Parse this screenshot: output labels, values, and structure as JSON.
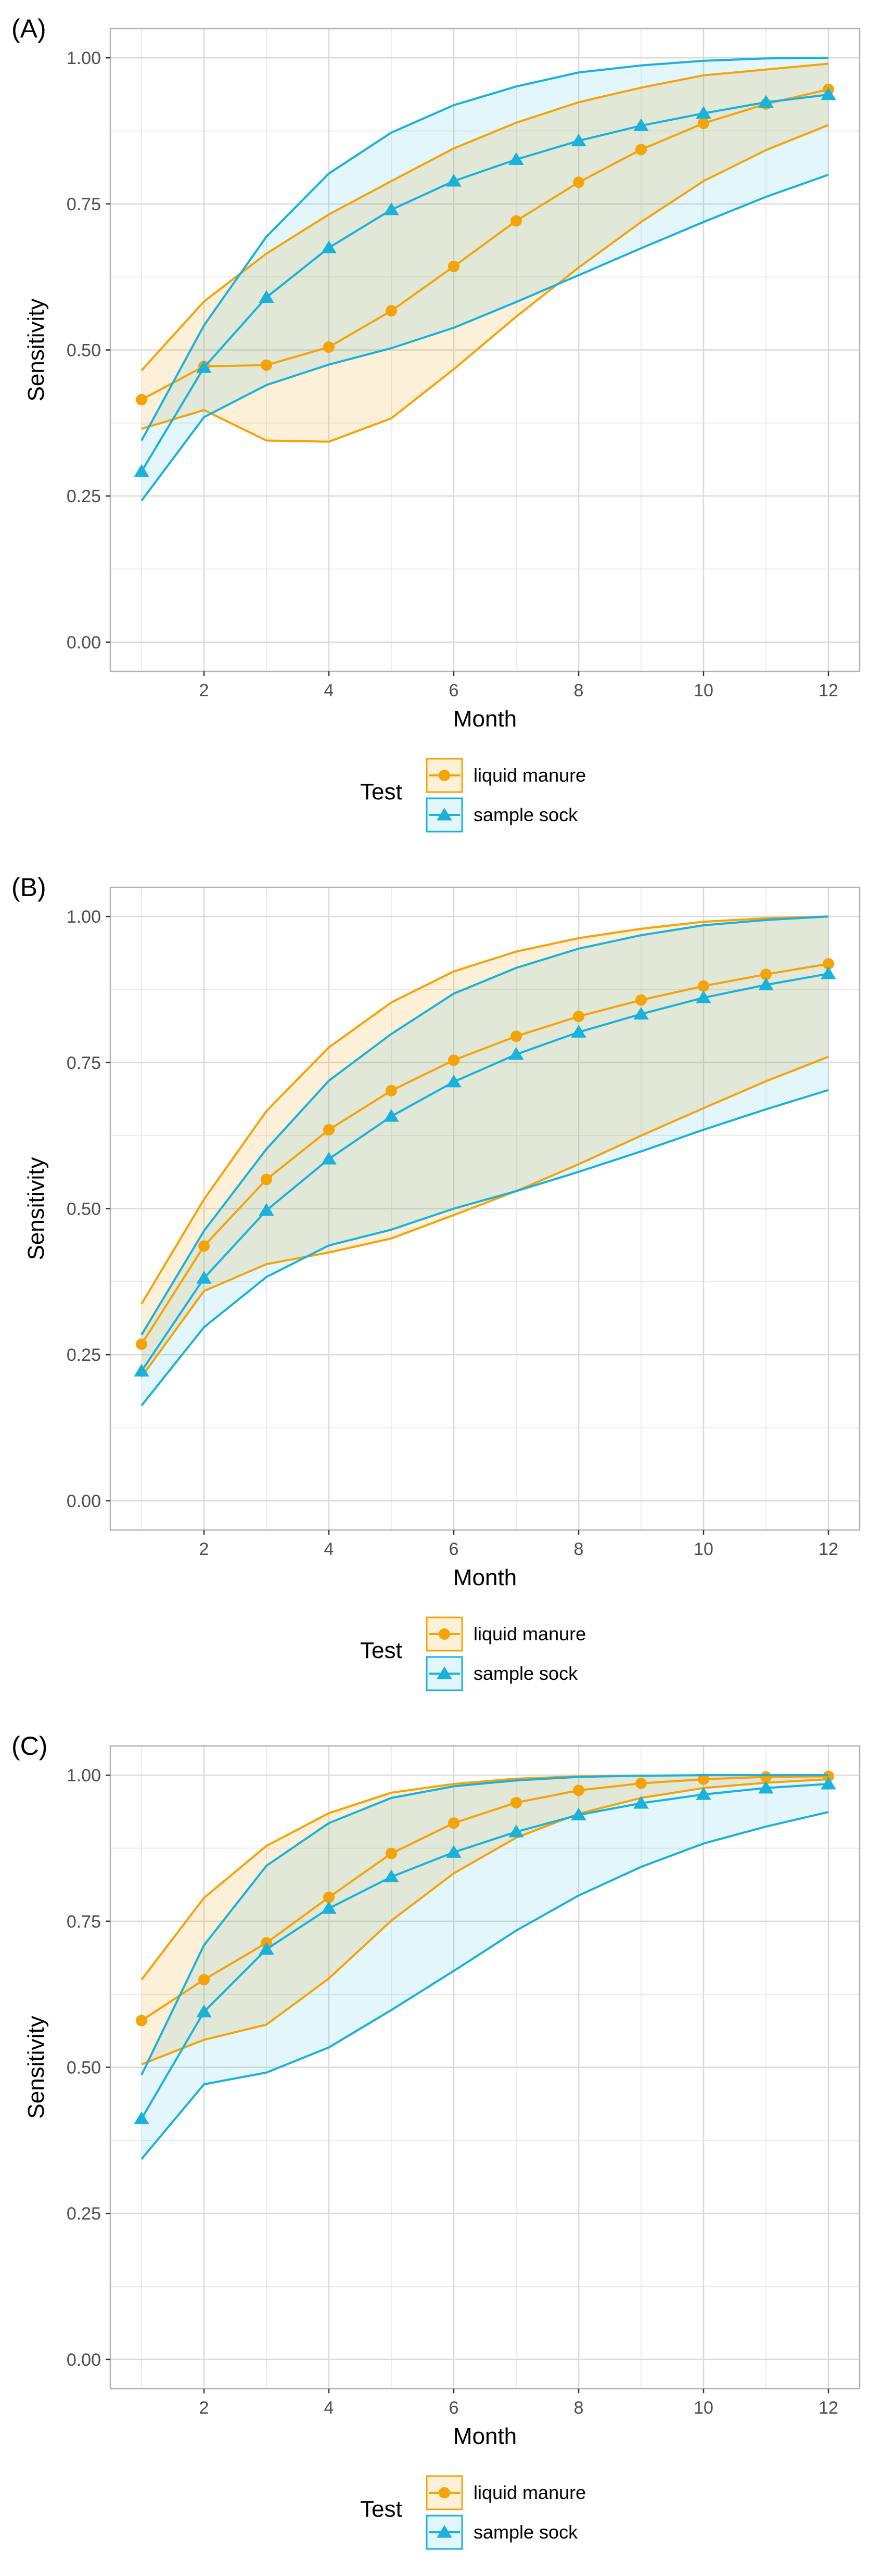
{
  "figure": {
    "colors": {
      "liquid_manure": "#F5A30A",
      "sample_sock": "#1AB1DB",
      "grid": "#E6E6E6",
      "axis_text": "#4D4D4D",
      "panel_border": "#B3B3B3"
    }
  },
  "chart_data": [
    {
      "panel_label": "(A)",
      "type": "line",
      "xlabel": "Month",
      "ylabel": "Sensitivity",
      "xlim": [
        0.5,
        12.5
      ],
      "ylim": [
        -0.05,
        1.05
      ],
      "x_ticks": [
        "2",
        "4",
        "6",
        "8",
        "10",
        "12"
      ],
      "y_ticks": [
        "0.00",
        "0.25",
        "0.50",
        "0.75",
        "1.00"
      ],
      "legend": {
        "title": "Test",
        "position": "bottom"
      },
      "x": [
        1,
        2,
        3,
        4,
        5,
        6,
        7,
        8,
        9,
        10,
        11,
        12
      ],
      "series": [
        {
          "name": "liquid manure",
          "marker": "circle",
          "values": [
            0.415,
            0.472,
            0.474,
            0.505,
            0.567,
            0.643,
            0.721,
            0.787,
            0.843,
            0.888,
            0.921,
            0.946
          ],
          "lower": [
            0.365,
            0.397,
            0.345,
            0.343,
            0.383,
            0.467,
            0.557,
            0.641,
            0.719,
            0.789,
            0.842,
            0.885
          ],
          "upper": [
            0.465,
            0.583,
            0.665,
            0.732,
            0.789,
            0.845,
            0.889,
            0.924,
            0.949,
            0.97,
            0.98,
            0.99
          ]
        },
        {
          "name": "sample sock",
          "marker": "triangle",
          "values": [
            0.292,
            0.47,
            0.59,
            0.675,
            0.74,
            0.789,
            0.826,
            0.858,
            0.884,
            0.905,
            0.924,
            0.937
          ],
          "lower": [
            0.242,
            0.385,
            0.44,
            0.475,
            0.503,
            0.538,
            0.582,
            0.628,
            0.674,
            0.719,
            0.762,
            0.8
          ],
          "upper": [
            0.345,
            0.542,
            0.694,
            0.802,
            0.872,
            0.919,
            0.951,
            0.975,
            0.987,
            0.995,
            0.999,
            1.0
          ]
        }
      ]
    },
    {
      "panel_label": "(B)",
      "type": "line",
      "xlabel": "Month",
      "ylabel": "Sensitivity",
      "xlim": [
        0.5,
        12.5
      ],
      "ylim": [
        -0.05,
        1.05
      ],
      "x_ticks": [
        "2",
        "4",
        "6",
        "8",
        "10",
        "12"
      ],
      "y_ticks": [
        "0.00",
        "0.25",
        "0.50",
        "0.75",
        "1.00"
      ],
      "legend": {
        "title": "Test",
        "position": "bottom"
      },
      "x": [
        1,
        2,
        3,
        4,
        5,
        6,
        7,
        8,
        9,
        10,
        11,
        12
      ],
      "series": [
        {
          "name": "liquid manure",
          "marker": "circle",
          "values": [
            0.268,
            0.436,
            0.55,
            0.635,
            0.702,
            0.754,
            0.795,
            0.829,
            0.857,
            0.881,
            0.901,
            0.919
          ],
          "lower": [
            0.212,
            0.359,
            0.405,
            0.425,
            0.449,
            0.489,
            0.53,
            0.576,
            0.625,
            0.672,
            0.718,
            0.76
          ],
          "upper": [
            0.337,
            0.516,
            0.667,
            0.776,
            0.853,
            0.906,
            0.94,
            0.963,
            0.979,
            0.991,
            0.997,
            1.0
          ]
        },
        {
          "name": "sample sock",
          "marker": "triangle",
          "values": [
            0.222,
            0.381,
            0.497,
            0.585,
            0.658,
            0.717,
            0.764,
            0.802,
            0.833,
            0.861,
            0.883,
            0.902
          ],
          "lower": [
            0.163,
            0.297,
            0.383,
            0.437,
            0.464,
            0.5,
            0.53,
            0.563,
            0.598,
            0.635,
            0.67,
            0.703
          ],
          "upper": [
            0.284,
            0.462,
            0.602,
            0.719,
            0.799,
            0.868,
            0.912,
            0.945,
            0.968,
            0.985,
            0.994,
            1.0
          ]
        }
      ]
    },
    {
      "panel_label": "(C)",
      "type": "line",
      "xlabel": "Month",
      "ylabel": "Sensitivity",
      "xlim": [
        0.5,
        12.5
      ],
      "ylim": [
        -0.05,
        1.05
      ],
      "x_ticks": [
        "2",
        "4",
        "6",
        "8",
        "10",
        "12"
      ],
      "y_ticks": [
        "0.00",
        "0.25",
        "0.50",
        "0.75",
        "1.00"
      ],
      "legend": {
        "title": "Test",
        "position": "bottom"
      },
      "x": [
        1,
        2,
        3,
        4,
        5,
        6,
        7,
        8,
        9,
        10,
        11,
        12
      ],
      "series": [
        {
          "name": "liquid manure",
          "marker": "circle",
          "values": [
            0.58,
            0.65,
            0.713,
            0.791,
            0.866,
            0.918,
            0.953,
            0.974,
            0.986,
            0.993,
            0.997,
            0.998
          ],
          "lower": [
            0.505,
            0.547,
            0.573,
            0.652,
            0.751,
            0.832,
            0.893,
            0.934,
            0.961,
            0.978,
            0.987,
            0.993
          ],
          "upper": [
            0.65,
            0.79,
            0.879,
            0.935,
            0.97,
            0.985,
            0.994,
            0.998,
            0.999,
            1.0,
            1.0,
            1.0
          ]
        },
        {
          "name": "sample sock",
          "marker": "triangle",
          "values": [
            0.412,
            0.595,
            0.702,
            0.772,
            0.826,
            0.868,
            0.903,
            0.932,
            0.952,
            0.967,
            0.978,
            0.985
          ],
          "lower": [
            0.343,
            0.471,
            0.491,
            0.534,
            0.598,
            0.665,
            0.734,
            0.794,
            0.843,
            0.883,
            0.912,
            0.937
          ],
          "upper": [
            0.487,
            0.709,
            0.845,
            0.918,
            0.961,
            0.981,
            0.991,
            0.997,
            0.999,
            1.0,
            1.0,
            1.0
          ]
        }
      ]
    }
  ]
}
